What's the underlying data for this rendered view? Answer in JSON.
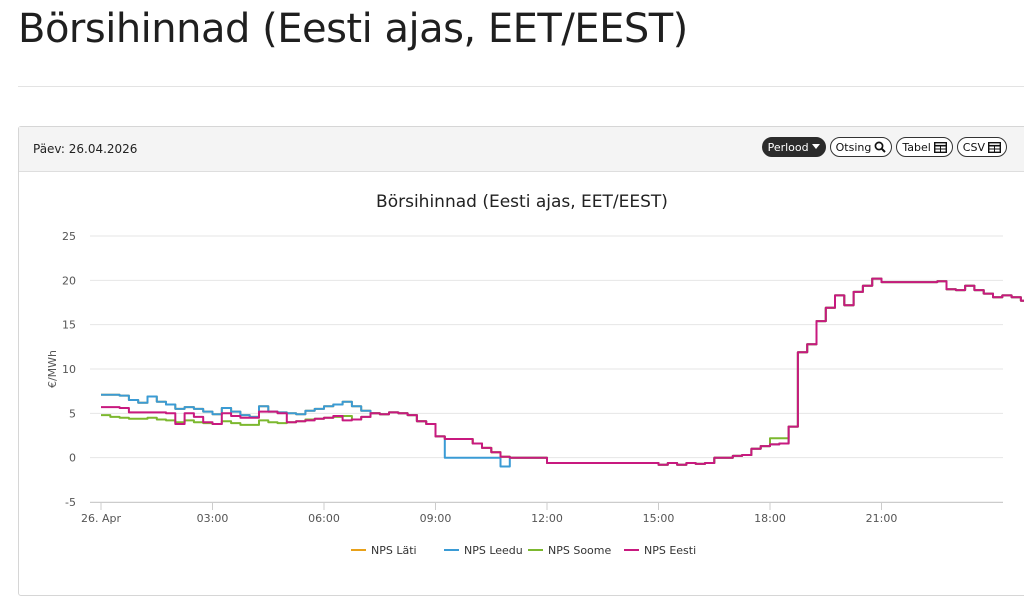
{
  "page": {
    "title": "Börsihinnad (Eesti ajas, EET/EEST)"
  },
  "panel": {
    "date_label": "Päev: 26.04.2026",
    "buttons": {
      "period": "Perlood",
      "search": "Otsing",
      "table": "Tabel",
      "csv": "CSV"
    }
  },
  "colors": {
    "NPS Läti": "#e8a11a",
    "NPS Leedu": "#3a9bd5",
    "NPS Soome": "#7cb82f",
    "NPS Eesti": "#c8197f"
  },
  "chart_data": {
    "type": "line",
    "step": true,
    "title": "Börsihinnad (Eesti ajas, EET/EEST)",
    "xlabel": "",
    "ylabel": "€/MWh",
    "ylim": [
      -5,
      25
    ],
    "xlim": [
      0,
      24
    ],
    "yticks": [
      -5,
      0,
      5,
      10,
      15,
      20,
      25
    ],
    "xticks": [
      {
        "value": 0,
        "label": "26. Apr"
      },
      {
        "value": 3,
        "label": "03:00"
      },
      {
        "value": 6,
        "label": "06:00"
      },
      {
        "value": 9,
        "label": "09:00"
      },
      {
        "value": 12,
        "label": "12:00"
      },
      {
        "value": 15,
        "label": "15:00"
      },
      {
        "value": 18,
        "label": "18:00"
      },
      {
        "value": 21,
        "label": "21:00"
      }
    ],
    "grid": true,
    "legend_position": "bottom",
    "x_step_hours": 0.25,
    "series": [
      {
        "name": "NPS Läti",
        "color": "#e8a11a",
        "values": [
          7.1,
          7.1,
          7.0,
          6.5,
          6.2,
          6.9,
          6.3,
          6.0,
          5.5,
          5.7,
          5.5,
          5.2,
          4.9,
          5.6,
          5.2,
          4.8,
          4.6,
          5.8,
          5.2,
          5.1,
          5.0,
          4.9,
          5.3,
          5.5,
          5.8,
          6.0,
          6.3,
          5.8,
          5.3,
          5.0,
          4.9,
          5.1,
          5.0,
          4.8,
          4.1,
          3.8,
          2.4,
          2.1,
          2.1,
          2.1,
          1.6,
          1.1,
          0.6,
          0.1,
          0.0,
          0.0,
          0.0,
          0.0,
          -0.6,
          -0.6,
          -0.6,
          -0.6,
          -0.6,
          -0.6,
          -0.6,
          -0.6,
          -0.6,
          -0.6,
          -0.6,
          -0.6,
          -0.8,
          -0.6,
          -0.8,
          -0.6,
          -0.7,
          -0.6,
          0.0,
          0.0,
          0.2,
          0.3,
          1.0,
          1.3,
          1.5,
          1.6,
          3.5,
          11.9,
          12.8,
          15.4,
          16.9,
          18.3,
          17.2,
          18.7,
          19.4,
          20.2,
          19.8,
          19.8,
          19.8,
          19.8,
          19.8,
          19.8,
          19.9,
          19.0,
          18.9,
          19.4,
          18.9,
          18.5,
          18.1,
          18.3,
          18.1,
          17.7
        ]
      },
      {
        "name": "NPS Leedu",
        "color": "#3a9bd5",
        "values": [
          7.1,
          7.1,
          7.0,
          6.5,
          6.2,
          6.9,
          6.3,
          6.0,
          5.5,
          5.7,
          5.5,
          5.2,
          4.9,
          5.6,
          5.2,
          4.8,
          4.6,
          5.8,
          5.2,
          5.1,
          5.0,
          4.9,
          5.3,
          5.5,
          5.8,
          6.0,
          6.3,
          5.8,
          5.3,
          5.0,
          4.9,
          5.1,
          5.0,
          4.8,
          4.1,
          3.8,
          2.4,
          0.0,
          0.0,
          0.0,
          0.0,
          0.0,
          0.0,
          -1.0,
          0.0,
          0.0,
          0.0,
          0.0,
          -0.6,
          -0.6,
          -0.6,
          -0.6,
          -0.6,
          -0.6,
          -0.6,
          -0.6,
          -0.6,
          -0.6,
          -0.6,
          -0.6,
          -0.8,
          -0.6,
          -0.8,
          -0.6,
          -0.7,
          -0.6,
          0.0,
          0.0,
          0.2,
          0.3,
          1.0,
          1.3,
          1.5,
          1.6,
          3.5,
          11.9,
          12.8,
          15.4,
          16.9,
          18.3,
          17.2,
          18.7,
          19.4,
          20.2,
          19.8,
          19.8,
          19.8,
          19.8,
          19.8,
          19.8,
          19.9,
          19.0,
          18.9,
          19.4,
          18.9,
          18.5,
          18.1,
          18.3,
          18.1,
          17.7
        ]
      },
      {
        "name": "NPS Soome",
        "color": "#7cb82f",
        "values": [
          4.8,
          4.6,
          4.5,
          4.4,
          4.4,
          4.5,
          4.3,
          4.2,
          4.0,
          4.2,
          4.0,
          3.9,
          3.8,
          4.1,
          3.9,
          3.7,
          3.7,
          4.2,
          4.0,
          3.9,
          4.0,
          4.1,
          4.3,
          4.4,
          4.5,
          4.6,
          4.7,
          4.3,
          4.6,
          5.0,
          4.9,
          5.1,
          5.0,
          4.8,
          4.1,
          3.8,
          2.4,
          2.1,
          2.1,
          2.1,
          1.6,
          1.1,
          0.6,
          0.1,
          0.0,
          0.0,
          0.0,
          0.0,
          -0.6,
          -0.6,
          -0.6,
          -0.6,
          -0.6,
          -0.6,
          -0.6,
          -0.6,
          -0.6,
          -0.6,
          -0.6,
          -0.6,
          -0.8,
          -0.6,
          -0.8,
          -0.6,
          -0.7,
          -0.6,
          0.0,
          0.0,
          0.2,
          0.3,
          1.0,
          1.3,
          2.2,
          2.2,
          3.5,
          11.9,
          12.8,
          15.4,
          16.9,
          18.3,
          17.2,
          18.7,
          19.4,
          20.2,
          19.8,
          19.8,
          19.8,
          19.8,
          19.8,
          19.8,
          19.9,
          19.0,
          18.9,
          19.4,
          18.9,
          18.5,
          18.1,
          18.3,
          18.1,
          17.7
        ]
      },
      {
        "name": "NPS Eesti",
        "color": "#c8197f",
        "values": [
          5.7,
          5.7,
          5.6,
          5.1,
          5.1,
          5.1,
          5.1,
          5.0,
          3.8,
          5.0,
          4.6,
          4.0,
          3.8,
          5.0,
          4.7,
          4.5,
          4.5,
          5.2,
          5.2,
          5.0,
          4.0,
          4.1,
          4.2,
          4.4,
          4.5,
          4.7,
          4.2,
          4.3,
          4.6,
          5.0,
          4.9,
          5.1,
          5.0,
          4.8,
          4.1,
          3.8,
          2.4,
          2.1,
          2.1,
          2.1,
          1.6,
          1.1,
          0.6,
          0.1,
          0.0,
          0.0,
          0.0,
          0.0,
          -0.6,
          -0.6,
          -0.6,
          -0.6,
          -0.6,
          -0.6,
          -0.6,
          -0.6,
          -0.6,
          -0.6,
          -0.6,
          -0.6,
          -0.8,
          -0.6,
          -0.8,
          -0.6,
          -0.7,
          -0.6,
          0.0,
          0.0,
          0.2,
          0.3,
          1.0,
          1.3,
          1.5,
          1.6,
          3.5,
          11.9,
          12.8,
          15.4,
          16.9,
          18.3,
          17.2,
          18.7,
          19.4,
          20.2,
          19.8,
          19.8,
          19.8,
          19.8,
          19.8,
          19.8,
          19.9,
          19.0,
          18.9,
          19.4,
          18.9,
          18.5,
          18.1,
          18.3,
          18.1,
          17.7
        ]
      }
    ]
  }
}
